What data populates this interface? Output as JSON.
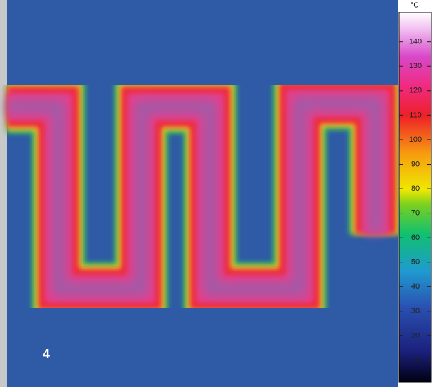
{
  "image_label": "4",
  "colorbar": {
    "unit": "°C",
    "lim": [
      1,
      152
    ],
    "ticks": [
      10,
      20,
      30,
      40,
      50,
      60,
      70,
      80,
      90,
      100,
      110,
      120,
      130,
      140
    ]
  }
}
